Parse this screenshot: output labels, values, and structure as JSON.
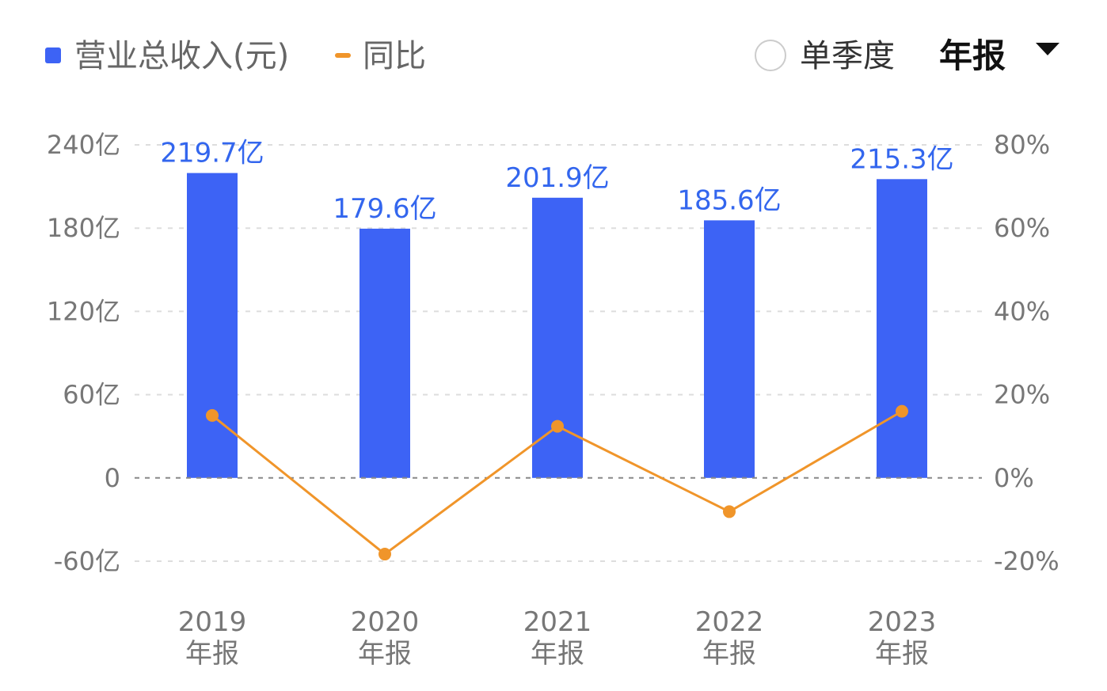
{
  "legend": {
    "bar_series_label": "营业总收入(元)",
    "line_series_label": "同比"
  },
  "controls": {
    "quarter_option": "单季度",
    "period_selected": "年报"
  },
  "colors": {
    "bar": "#3d63f5",
    "line": "#f0952a",
    "bar_label": "#3366ee",
    "grid": "#dddddd",
    "zero_line": "#888888"
  },
  "chart_data": {
    "type": "bar",
    "categories": [
      "2019",
      "2020",
      "2021",
      "2022",
      "2023"
    ],
    "category_sublabels": [
      "年报",
      "年报",
      "年报",
      "年报",
      "年报"
    ],
    "series": [
      {
        "name": "营业总收入(元)",
        "type": "bar",
        "axis": "left",
        "values": [
          219.7,
          179.6,
          201.9,
          185.6,
          215.3
        ],
        "data_labels": [
          "219.7亿",
          "179.6亿",
          "201.9亿",
          "185.6亿",
          "215.3亿"
        ]
      },
      {
        "name": "同比",
        "type": "line",
        "axis": "right",
        "values": [
          15,
          -18.3,
          12.4,
          -8.1,
          16
        ]
      }
    ],
    "y_left": {
      "ylim": [
        -60,
        240
      ],
      "ticks": [
        240,
        180,
        120,
        60,
        0,
        -60
      ],
      "tick_labels": [
        "240亿",
        "180亿",
        "120亿",
        "60亿",
        "0",
        "-60亿"
      ]
    },
    "y_right": {
      "ylim": [
        -20,
        80
      ],
      "ticks": [
        80,
        60,
        40,
        20,
        0,
        -20
      ],
      "tick_labels": [
        "80%",
        "60%",
        "40%",
        "20%",
        "0%",
        "-20%"
      ]
    },
    "grid": true,
    "legend_position": "top-left"
  }
}
